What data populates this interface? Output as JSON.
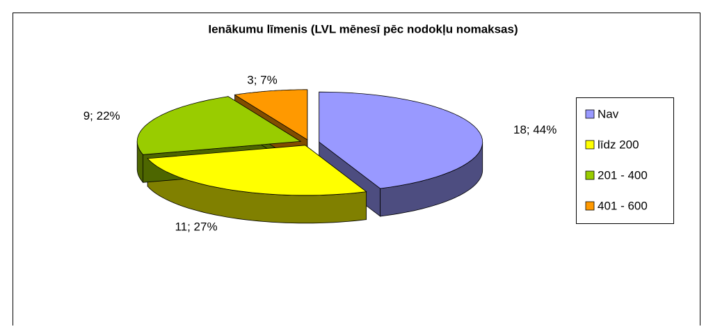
{
  "chart_data": {
    "type": "pie",
    "title": "Ienākumu līmenis (LVL mēnesī pēc nodokļu nomaksas)",
    "categories": [
      "Nav",
      "līdz 200",
      "201 - 400",
      "401 - 600"
    ],
    "values": [
      18,
      11,
      9,
      3
    ],
    "value_labels": [
      "18; 44%",
      "11; 27%",
      "9; 22%",
      "3; 7%"
    ],
    "colors": [
      "#9999ff",
      "#ffff00",
      "#99cc00",
      "#ff9900"
    ],
    "legend": "right"
  }
}
